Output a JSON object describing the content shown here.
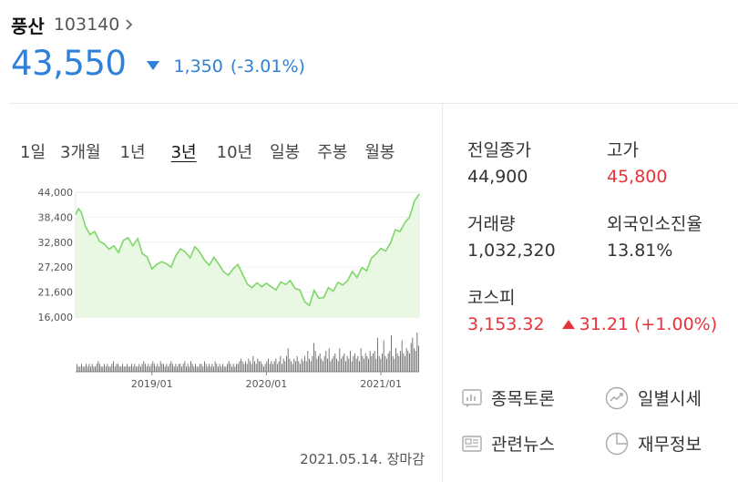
{
  "stock": {
    "name": "풍산",
    "code": "103140",
    "price": "43,550",
    "change": "1,350",
    "change_pct": "(-3.01%)",
    "direction": "down"
  },
  "tabs": [
    "1일",
    "3개월",
    "1년",
    "3년",
    "10년",
    "일봉",
    "주봉",
    "월봉"
  ],
  "active_tab": "3년",
  "info": {
    "prev_close": {
      "label": "전일종가",
      "value": "44,900"
    },
    "high": {
      "label": "고가",
      "value": "45,800"
    },
    "volume": {
      "label": "거래량",
      "value": "1,032,320"
    },
    "foreign_ratio": {
      "label": "외국인소진율",
      "value": "13.81%"
    },
    "kospi": {
      "label": "코스피",
      "value": "3,153.32",
      "change": "31.21",
      "change_pct": "(+1.00%)"
    }
  },
  "links": {
    "discussion": "종목토론",
    "daily_quotes": "일별시세",
    "news": "관련뉴스",
    "financials": "재무정보"
  },
  "date_stamp": "2021.05.14. 장마감",
  "colors": {
    "down": "#2f80d9",
    "up": "#e8323a",
    "line": "#7fd66a",
    "area": "#e8f8e2"
  },
  "chart_data": {
    "type": "line",
    "y_ticks": [
      "44,000",
      "38,400",
      "32,800",
      "27,200",
      "21,600",
      "16,000"
    ],
    "ylim": [
      16000,
      44000
    ],
    "x_ticks": [
      "2019/01",
      "2020/01",
      "2021/01"
    ],
    "x_tick_months": [
      8,
      20,
      32
    ],
    "month_span": 36,
    "series": [
      {
        "x_months": [
          0,
          0.3,
          0.6,
          1,
          1.5,
          2,
          2.5,
          3,
          3.5,
          4,
          4.5,
          5,
          5.5,
          6,
          6.5,
          7,
          7.5,
          8,
          8.5,
          9,
          9.5,
          10,
          10.5,
          11,
          11.5,
          12,
          12.5,
          13,
          13.5,
          14,
          14.5,
          15,
          15.5,
          16,
          16.5,
          17,
          17.5,
          18,
          18.5,
          19,
          19.5,
          20,
          20.5,
          21,
          21.5,
          22,
          22.5,
          23,
          23.5,
          24,
          24.5,
          25,
          25.5,
          26,
          26.5,
          27,
          27.5,
          28,
          28.5,
          29,
          29.5,
          30,
          30.5,
          31,
          31.5,
          32,
          32.5,
          33,
          33.5,
          34,
          34.5,
          35,
          35.5,
          36
        ],
        "values": [
          39000,
          40300,
          39500,
          36500,
          34500,
          35200,
          33000,
          32400,
          31200,
          32000,
          30500,
          33200,
          33800,
          32000,
          33600,
          30200,
          29500,
          26800,
          27800,
          28400,
          28000,
          27200,
          29800,
          31300,
          30600,
          29300,
          31800,
          30600,
          28800,
          27600,
          29400,
          27900,
          26200,
          25400,
          26800,
          27800,
          25600,
          23400,
          22600,
          23700,
          22800,
          23600,
          22800,
          22100,
          23900,
          23300,
          24200,
          22400,
          22100,
          19500,
          18600,
          22000,
          20200,
          20400,
          22600,
          21800,
          23800,
          23200,
          24200,
          26200,
          24900,
          27100,
          26400,
          29200,
          30200,
          31400,
          30800,
          32600,
          35600,
          35200,
          37200,
          38400,
          42000,
          43550
        ]
      }
    ],
    "volume": [
      3,
      2,
      2,
      3,
      2,
      2,
      3,
      2,
      3,
      2,
      3,
      2,
      2,
      3,
      4,
      3,
      2,
      2,
      3,
      2,
      3,
      2,
      2,
      3,
      4,
      2,
      3,
      3,
      2,
      2,
      3,
      2,
      2,
      3,
      2,
      2,
      3,
      2,
      3,
      2,
      2,
      3,
      2,
      3,
      4,
      3,
      2,
      3,
      2,
      3,
      4,
      3,
      2,
      3,
      2,
      4,
      3,
      3,
      2,
      3,
      2,
      3,
      4,
      3,
      2,
      3,
      2,
      3,
      3,
      2,
      3,
      4,
      2,
      3,
      2,
      4,
      3,
      2,
      3,
      2,
      2,
      3,
      3,
      2,
      4,
      3,
      2,
      3,
      2,
      3,
      2,
      4,
      3,
      2,
      3,
      2,
      3,
      2,
      2,
      3,
      4,
      3,
      2,
      3,
      2,
      3,
      3,
      4,
      5,
      4,
      3,
      4,
      3,
      5,
      4,
      3,
      6,
      4,
      3,
      5,
      4,
      4,
      3,
      2,
      3,
      4,
      5,
      3,
      4,
      3,
      4,
      5,
      3,
      4,
      6,
      3,
      5,
      4,
      6,
      9,
      5,
      4,
      3,
      5,
      4,
      6,
      4,
      3,
      5,
      4,
      6,
      4,
      8,
      5,
      4,
      6,
      11,
      8,
      5,
      6,
      7,
      5,
      4,
      6,
      8,
      5,
      9,
      4,
      5,
      6,
      7,
      5,
      4,
      9,
      5,
      6,
      7,
      4,
      6,
      5,
      8,
      4,
      6,
      7,
      5,
      6,
      4,
      9,
      6,
      5,
      7,
      6,
      5,
      8,
      6,
      7,
      8,
      5,
      13,
      6,
      5,
      7,
      12,
      6,
      5,
      7,
      8,
      14,
      6,
      5,
      9,
      7,
      6,
      8,
      12,
      7,
      6,
      9,
      8,
      7,
      11,
      13,
      9,
      8,
      15,
      10
    ]
  }
}
